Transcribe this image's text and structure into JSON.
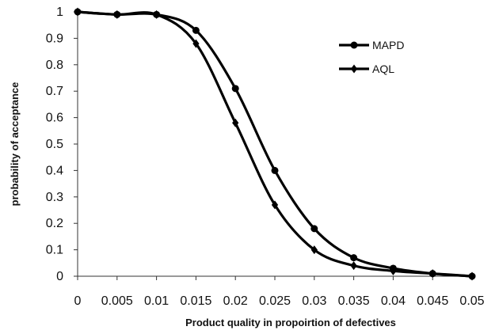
{
  "chart_data": {
    "type": "line",
    "title": "",
    "xlabel": "Product quality in propoirtion of defectives",
    "ylabel": "probability of acceptance",
    "xlim": [
      0,
      0.05
    ],
    "ylim": [
      0,
      1
    ],
    "x_tick_labels": [
      "0",
      "0.005",
      "0.01",
      "0.015",
      "0.02",
      "0.025",
      "0.03",
      "0.035",
      "0.04",
      "0.045",
      "0.05"
    ],
    "y_tick_labels": [
      "0",
      "0.1",
      "0.2",
      "0.3",
      "0.4",
      "0.5",
      "0.6",
      "0.7",
      "0.8",
      "0.9",
      "1"
    ],
    "grid": false,
    "legend_position": "top-right",
    "series": [
      {
        "name": "MAPD",
        "marker": "circle",
        "color": "#000000",
        "x": [
          0,
          0.005,
          0.01,
          0.015,
          0.02,
          0.025,
          0.03,
          0.035,
          0.04,
          0.045,
          0.05
        ],
        "y": [
          1.0,
          0.99,
          0.99,
          0.93,
          0.71,
          0.4,
          0.18,
          0.07,
          0.03,
          0.01,
          0.0
        ]
      },
      {
        "name": "AQL",
        "marker": "diamond",
        "color": "#000000",
        "x": [
          0,
          0.005,
          0.01,
          0.015,
          0.02,
          0.025,
          0.03,
          0.035,
          0.04,
          0.045,
          0.05
        ],
        "y": [
          1.0,
          0.99,
          0.99,
          0.88,
          0.58,
          0.27,
          0.1,
          0.04,
          0.02,
          0.01,
          0.0
        ]
      }
    ]
  }
}
